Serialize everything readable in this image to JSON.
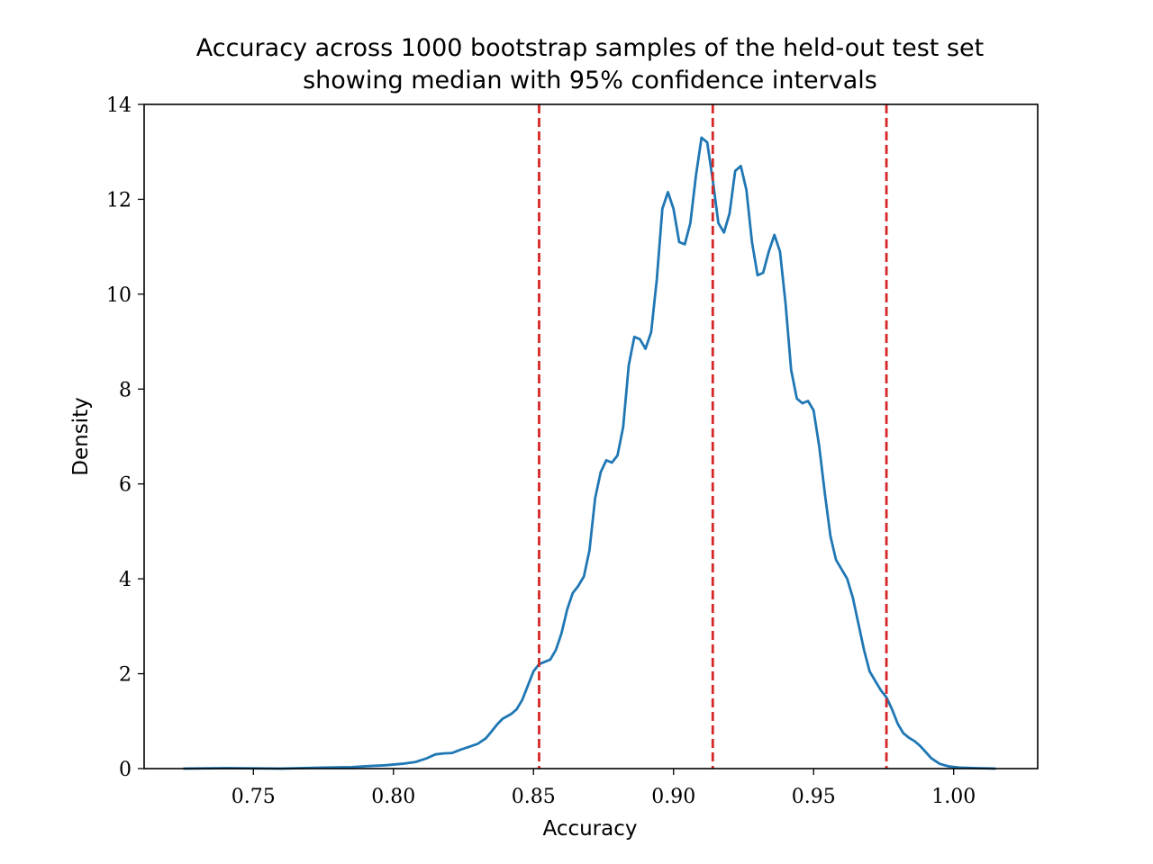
{
  "chart_data": {
    "type": "line",
    "title": "Accuracy across 1000 bootstrap samples of the held-out test set",
    "subtitle": "showing median with 95% confidence intervals",
    "xlabel": "Accuracy",
    "ylabel": "Density",
    "xlim": [
      0.711,
      1.03
    ],
    "ylim": [
      0,
      14
    ],
    "x_ticks": [
      "0.75",
      "0.80",
      "0.85",
      "0.90",
      "0.95",
      "1.00"
    ],
    "y_ticks": [
      "0",
      "2",
      "4",
      "6",
      "8",
      "10",
      "12",
      "14"
    ],
    "grid": false,
    "legend": "none",
    "series": [
      {
        "color": "#1f77b4",
        "x": [
          0.725,
          0.74,
          0.76,
          0.775,
          0.785,
          0.79,
          0.797,
          0.803,
          0.808,
          0.812,
          0.815,
          0.818,
          0.821,
          0.824,
          0.827,
          0.83,
          0.833,
          0.835,
          0.837,
          0.839,
          0.842,
          0.844,
          0.846,
          0.848,
          0.85,
          0.852,
          0.854,
          0.856,
          0.858,
          0.86,
          0.862,
          0.864,
          0.866,
          0.868,
          0.87,
          0.872,
          0.874,
          0.876,
          0.878,
          0.88,
          0.882,
          0.884,
          0.886,
          0.888,
          0.89,
          0.892,
          0.894,
          0.896,
          0.898,
          0.9,
          0.902,
          0.904,
          0.906,
          0.908,
          0.91,
          0.912,
          0.914,
          0.916,
          0.918,
          0.92,
          0.922,
          0.924,
          0.926,
          0.928,
          0.93,
          0.932,
          0.934,
          0.936,
          0.938,
          0.94,
          0.942,
          0.944,
          0.946,
          0.948,
          0.95,
          0.952,
          0.954,
          0.956,
          0.958,
          0.96,
          0.962,
          0.964,
          0.966,
          0.968,
          0.97,
          0.972,
          0.974,
          0.976,
          0.978,
          0.98,
          0.982,
          0.984,
          0.986,
          0.988,
          0.99,
          0.992,
          0.995,
          0.998,
          1.002,
          1.008,
          1.015
        ],
        "y": [
          0.0,
          0.01,
          0.0,
          0.02,
          0.03,
          0.05,
          0.07,
          0.1,
          0.14,
          0.22,
          0.3,
          0.32,
          0.33,
          0.4,
          0.46,
          0.52,
          0.64,
          0.78,
          0.93,
          1.05,
          1.15,
          1.25,
          1.45,
          1.75,
          2.05,
          2.2,
          2.25,
          2.3,
          2.5,
          2.85,
          3.35,
          3.7,
          3.85,
          4.05,
          4.6,
          5.7,
          6.25,
          6.5,
          6.45,
          6.6,
          7.2,
          8.5,
          9.1,
          9.05,
          8.85,
          9.2,
          10.3,
          11.8,
          12.15,
          11.8,
          11.1,
          11.05,
          11.5,
          12.5,
          13.3,
          13.2,
          12.4,
          11.5,
          11.3,
          11.7,
          12.6,
          12.7,
          12.2,
          11.1,
          10.4,
          10.45,
          10.9,
          11.25,
          10.9,
          9.8,
          8.4,
          7.8,
          7.7,
          7.75,
          7.55,
          6.8,
          5.8,
          4.9,
          4.4,
          4.2,
          4.0,
          3.6,
          3.05,
          2.5,
          2.05,
          1.85,
          1.65,
          1.5,
          1.25,
          0.95,
          0.75,
          0.65,
          0.58,
          0.48,
          0.35,
          0.22,
          0.1,
          0.05,
          0.02,
          0.01,
          0.0
        ]
      }
    ],
    "vlines": [
      {
        "x": 0.852,
        "color": "#d62728",
        "style": "dashed"
      },
      {
        "x": 0.914,
        "color": "#d62728",
        "style": "dashed"
      },
      {
        "x": 0.976,
        "color": "#d62728",
        "style": "dashed"
      }
    ]
  }
}
